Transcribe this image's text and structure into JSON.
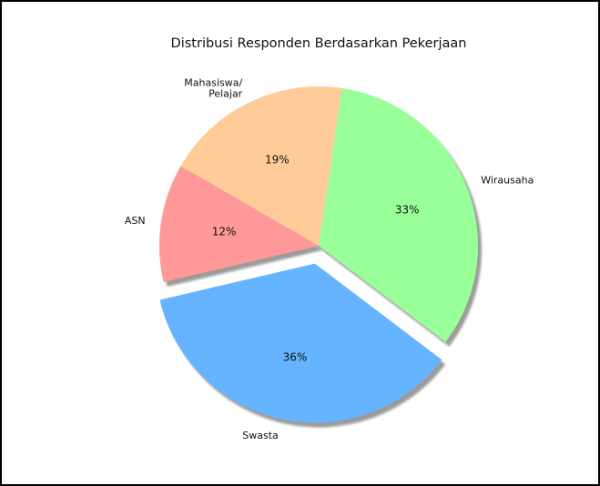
{
  "chart_data": {
    "type": "pie",
    "title": "Distribusi Responden Berdasarkan Pekerjaan",
    "start_angle_deg": 150,
    "direction": "counterclockwise",
    "shadow": true,
    "exploded": [
      "Swasta"
    ],
    "slices": [
      {
        "label": "ASN",
        "value": 12,
        "pct_label": "12%",
        "color": "#ff9999"
      },
      {
        "label": "Swasta",
        "value": 36,
        "pct_label": "36%",
        "color": "#66b3ff"
      },
      {
        "label": "Wirausaha",
        "value": 33,
        "pct_label": "33%",
        "color": "#99ff99"
      },
      {
        "label": "Mahasiswa/\nPelajar",
        "value": 19,
        "pct_label": "19%",
        "color": "#ffcc99"
      }
    ]
  }
}
